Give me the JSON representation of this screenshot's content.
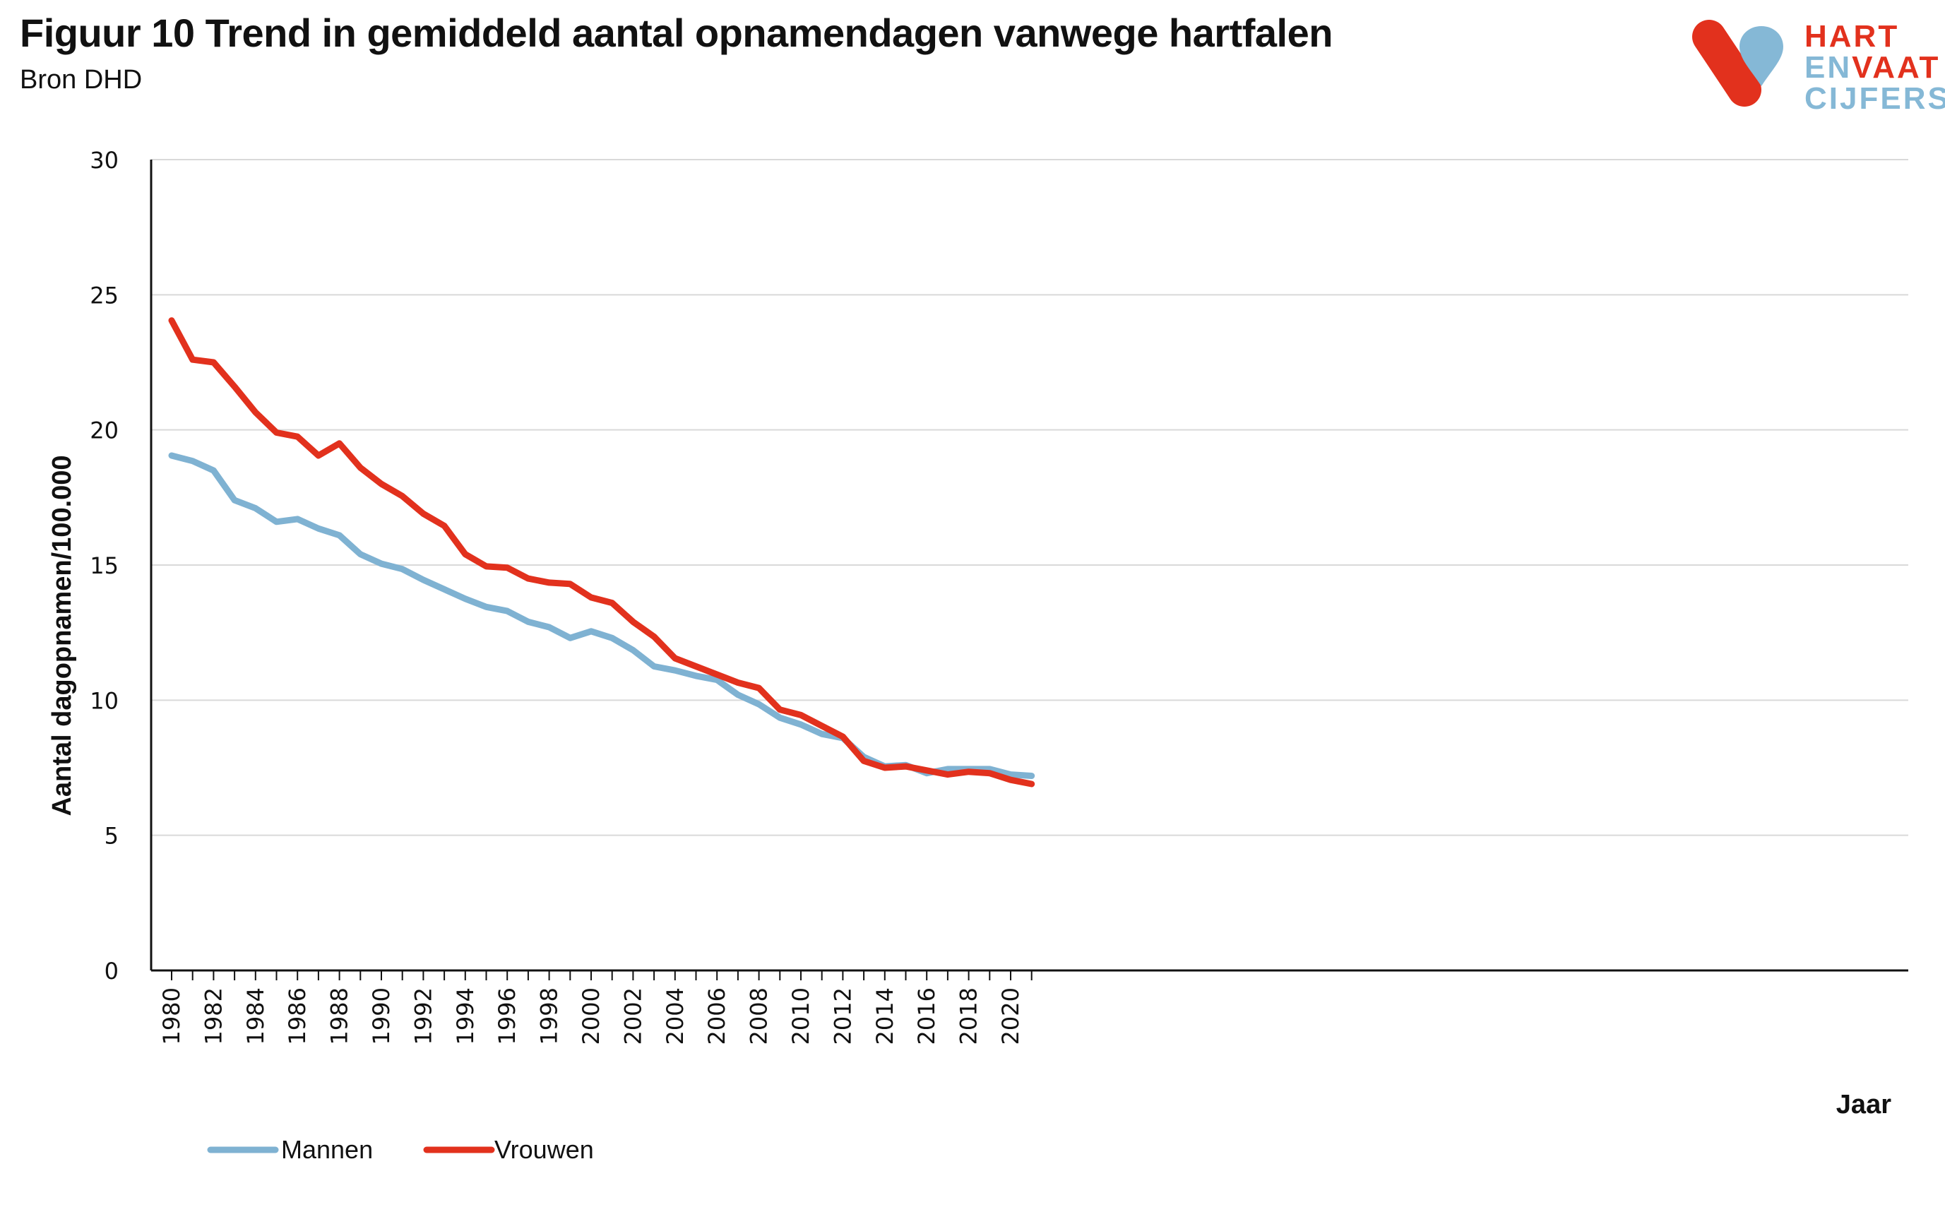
{
  "header": {
    "title": "Figuur 10 Trend in gemiddeld aantal opnamendagen vanwege hartfalen",
    "subtitle": "Bron DHD"
  },
  "logo": {
    "line1": "HART",
    "line2a": "EN",
    "line2b": "VAAT",
    "line3": "CIJFERS"
  },
  "colors": {
    "mannen": "#7fb2d2",
    "vrouwen": "#e2311d",
    "grid": "#d9d9d9",
    "axis": "#111111"
  },
  "chart_data": {
    "type": "line",
    "title": "Figuur 10 Trend in gemiddeld aantal opnamendagen vanwege hartfalen",
    "xlabel": "Jaar",
    "ylabel": "Aantal dagopnamen/100.000",
    "ylim": [
      0,
      30
    ],
    "yticks": [
      0,
      5,
      10,
      15,
      20,
      25,
      30
    ],
    "x": [
      1980,
      1981,
      1982,
      1983,
      1984,
      1985,
      1986,
      1987,
      1988,
      1989,
      1990,
      1991,
      1992,
      1993,
      1994,
      1995,
      1996,
      1997,
      1998,
      1999,
      2000,
      2001,
      2002,
      2003,
      2004,
      2005,
      2006,
      2007,
      2008,
      2009,
      2010,
      2011,
      2012,
      2013,
      2014,
      2015,
      2016,
      2017,
      2018,
      2019,
      2020,
      2021
    ],
    "xtick_labels": [
      "1980",
      "1982",
      "1984",
      "1986",
      "1988",
      "1990",
      "1992",
      "1994",
      "1996",
      "1998",
      "2000",
      "2002",
      "2004",
      "2006",
      "2008",
      "2010",
      "2012",
      "2014",
      "2016",
      "2018",
      "2020"
    ],
    "grid": true,
    "legend_position": "bottom-left",
    "series": [
      {
        "name": "Mannen",
        "values": [
          19.05,
          18.85,
          18.5,
          17.4,
          17.1,
          16.6,
          16.7,
          16.35,
          16.1,
          15.4,
          15.05,
          14.85,
          14.45,
          14.1,
          13.75,
          13.45,
          13.3,
          12.9,
          12.7,
          12.3,
          12.55,
          12.3,
          11.85,
          11.25,
          11.1,
          10.9,
          10.75,
          10.2,
          9.85,
          9.35,
          9.1,
          8.75,
          8.6,
          7.9,
          7.55,
          7.6,
          7.3,
          7.45,
          7.45,
          7.45,
          7.25,
          7.2
        ]
      },
      {
        "name": "Vrouwen",
        "values": [
          24.05,
          22.6,
          22.5,
          21.6,
          20.65,
          19.9,
          19.75,
          19.05,
          19.5,
          18.6,
          18.0,
          17.55,
          16.9,
          16.45,
          15.4,
          14.95,
          14.9,
          14.5,
          14.35,
          14.3,
          13.8,
          13.6,
          12.9,
          12.35,
          11.55,
          11.25,
          10.95,
          10.65,
          10.45,
          9.65,
          9.45,
          9.05,
          8.65,
          7.75,
          7.5,
          7.55,
          7.4,
          7.25,
          7.35,
          7.3,
          7.05,
          6.9
        ]
      }
    ]
  }
}
